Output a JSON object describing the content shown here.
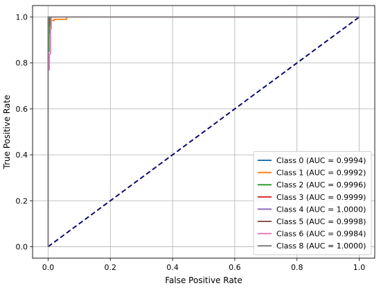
{
  "chart_data": {
    "type": "line",
    "title": "",
    "xlabel": "False Positive Rate",
    "ylabel": "True Positive Rate",
    "xlim": [
      -0.05,
      1.05
    ],
    "ylim": [
      -0.05,
      1.05
    ],
    "xticks": [
      0.0,
      0.2,
      0.4,
      0.6,
      0.8,
      1.0
    ],
    "yticks": [
      0.0,
      0.2,
      0.4,
      0.6,
      0.8,
      1.0
    ],
    "xtick_labels": [
      "0.0",
      "0.2",
      "0.4",
      "0.6",
      "0.8",
      "1.0"
    ],
    "ytick_labels": [
      "0.0",
      "0.2",
      "0.4",
      "0.6",
      "0.8",
      "1.0"
    ],
    "grid": true,
    "legend_position": "lower-right",
    "diagonal": {
      "x": [
        0,
        1
      ],
      "y": [
        0,
        1
      ],
      "color": "#0a0a6e",
      "style": "dashed"
    },
    "series": [
      {
        "name": "Class 0 (AUC = 0.9994)",
        "color": "#1f77b4",
        "x": [
          0,
          0,
          0.004,
          0.004,
          0.008,
          0.008,
          1.0
        ],
        "y": [
          0,
          0.93,
          0.93,
          0.97,
          0.97,
          1.0,
          1.0
        ]
      },
      {
        "name": "Class 1 (AUC = 0.9992)",
        "color": "#ff7f0e",
        "x": [
          0,
          0,
          0.006,
          0.006,
          0.02,
          0.02,
          0.06,
          0.06,
          1.0
        ],
        "y": [
          0,
          0.95,
          0.95,
          0.985,
          0.985,
          0.99,
          0.99,
          1.0,
          1.0
        ]
      },
      {
        "name": "Class 2 (AUC = 0.9996)",
        "color": "#2ca02c",
        "x": [
          0,
          0,
          0.003,
          0.003,
          0.006,
          0.006,
          1.0
        ],
        "y": [
          0,
          0.85,
          0.85,
          0.96,
          0.96,
          1.0,
          1.0
        ]
      },
      {
        "name": "Class 3 (AUC = 0.9999)",
        "color": "#d62728",
        "x": [
          0,
          0,
          0.002,
          0.002,
          1.0
        ],
        "y": [
          0,
          0.98,
          0.98,
          1.0,
          1.0
        ]
      },
      {
        "name": "Class 4 (AUC = 1.0000)",
        "color": "#9467bd",
        "x": [
          0,
          0,
          1.0
        ],
        "y": [
          0,
          1.0,
          1.0
        ]
      },
      {
        "name": "Class 5 (AUC = 0.9998)",
        "color": "#8c564b",
        "x": [
          0,
          0,
          0.003,
          0.003,
          1.0
        ],
        "y": [
          0,
          0.97,
          0.97,
          1.0,
          1.0
        ]
      },
      {
        "name": "Class 6 (AUC = 0.9984)",
        "color": "#e377c2",
        "x": [
          0,
          0,
          0.004,
          0.004,
          0.008,
          0.008,
          0.01,
          0.01,
          1.0
        ],
        "y": [
          0,
          0.77,
          0.77,
          0.84,
          0.84,
          0.95,
          0.95,
          1.0,
          1.0
        ]
      },
      {
        "name": "Class 8 (AUC = 1.0000)",
        "color": "#7f7f7f",
        "x": [
          0,
          0,
          1.0
        ],
        "y": [
          0,
          1.0,
          1.0
        ]
      }
    ]
  }
}
